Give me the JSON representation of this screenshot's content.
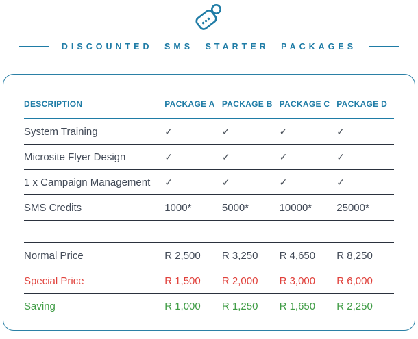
{
  "header": {
    "icon": "price-tag-icon"
  },
  "colors": {
    "accent": "#1f7ca6",
    "body_text": "#424a57",
    "divider": "#2b323e",
    "special_price_red": "#e0413b",
    "saving_green": "#3f9c45",
    "checkmark": "#4b525b",
    "background": "#ffffff"
  },
  "chart_data": {
    "type": "table",
    "title": "DISCOUNTED SMS STARTER PACKAGES",
    "columns": [
      "DESCRIPTION",
      "PACKAGE A",
      "PACKAGE B",
      "PACKAGE C",
      "PACKAGE D"
    ],
    "rows": [
      {
        "label": "System Training",
        "values": [
          "✓",
          "✓",
          "✓",
          "✓"
        ],
        "style": "default"
      },
      {
        "label": "Microsite Flyer Design",
        "values": [
          "✓",
          "✓",
          "✓",
          "✓"
        ],
        "style": "default"
      },
      {
        "label": "1 x Campaign Management",
        "values": [
          "✓",
          "✓",
          "✓",
          "✓"
        ],
        "style": "default"
      },
      {
        "label": "SMS Credits",
        "values": [
          "1000*",
          "5000*",
          "10000*",
          "25000*"
        ],
        "style": "default"
      },
      {
        "label": "",
        "values": [
          "",
          "",
          "",
          ""
        ],
        "style": "spacer"
      },
      {
        "label": "Normal Price",
        "values": [
          "R 2,500",
          "R 3,250",
          "R 4,650",
          "R 8,250"
        ],
        "style": "default"
      },
      {
        "label": "Special Price",
        "values": [
          "R 1,500",
          "R 2,000",
          "R 3,000",
          "R 6,000"
        ],
        "style": "red"
      },
      {
        "label": "Saving",
        "values": [
          "R 1,000",
          "R 1,250",
          "R 1,650",
          "R 2,250"
        ],
        "style": "green"
      }
    ]
  }
}
